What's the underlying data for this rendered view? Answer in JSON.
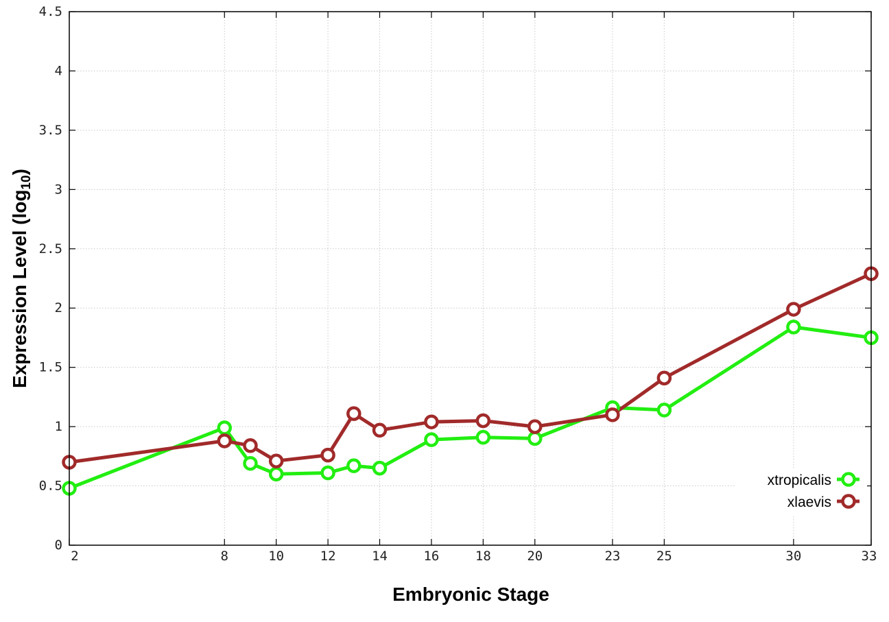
{
  "chart_data": {
    "type": "line",
    "xlabel": "Embryonic Stage",
    "ylabel_main": "Expression Level (log",
    "ylabel_sub": "10",
    "ylabel_close": ")",
    "xlim": [
      2,
      33
    ],
    "ylim": [
      0,
      4.5
    ],
    "x_ticks": [
      2,
      8,
      10,
      12,
      14,
      16,
      18,
      20,
      23,
      25,
      30,
      33
    ],
    "y_ticks": [
      0,
      0.5,
      1,
      1.5,
      2,
      2.5,
      3,
      3.5,
      4,
      4.5
    ],
    "y_tick_labels": [
      "0",
      "0.5",
      "1",
      "1.5",
      "2",
      "2.5",
      "3",
      "3.5",
      "4",
      "4.5"
    ],
    "grid": true,
    "legend_position": "bottom-right",
    "series": [
      {
        "name": "xtropicalis",
        "color": "#22ee11",
        "x": [
          2,
          8,
          9,
          10,
          12,
          13,
          14,
          16,
          18,
          20,
          23,
          25,
          30,
          33
        ],
        "y": [
          0.48,
          0.99,
          0.69,
          0.6,
          0.61,
          0.67,
          0.65,
          0.89,
          0.91,
          0.9,
          1.16,
          1.14,
          1.84,
          1.75
        ]
      },
      {
        "name": "xlaevis",
        "color": "#a12a2a",
        "x": [
          2,
          8,
          9,
          10,
          12,
          13,
          14,
          16,
          18,
          20,
          23,
          25,
          30,
          33
        ],
        "y": [
          0.7,
          0.88,
          0.84,
          0.71,
          0.76,
          1.11,
          0.97,
          1.04,
          1.05,
          1.0,
          1.1,
          1.41,
          1.99,
          2.29
        ]
      }
    ]
  }
}
